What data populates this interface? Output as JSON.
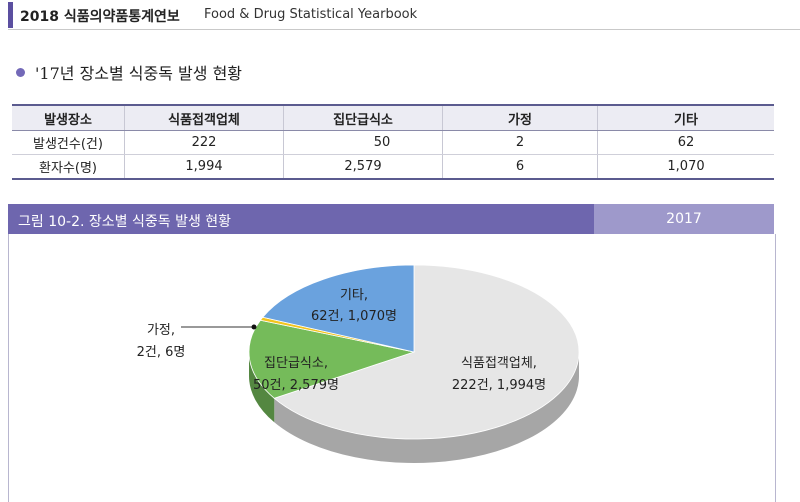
{
  "header": {
    "title_ko": "2018 식품의약품통계연보",
    "title_en": "Food & Drug Statistical Yearbook"
  },
  "section": {
    "subtitle": "'17년 장소별 식중독 발생 현황"
  },
  "table": {
    "headers": [
      "발생장소",
      "식품접객업체",
      "집단급식소",
      "가정",
      "기타"
    ],
    "rows": [
      [
        "발생건수(건)",
        "222",
        "50",
        "2",
        "62"
      ],
      [
        "환자수(명)",
        "1,994",
        "2,579",
        "6",
        "1,070"
      ]
    ]
  },
  "figure": {
    "title": "그림 10-2. 장소별 식중독 발생 현황",
    "year": "2017",
    "labels": {
      "restaurant": [
        "식품접객업체,",
        "222건, 1,994명"
      ],
      "cafeteria": [
        "집단급식소,",
        "50건, 2,579명"
      ],
      "home": [
        "가정,",
        "2건, 6명"
      ],
      "other": [
        "기타,",
        "62건, 1,070명"
      ]
    }
  },
  "chart_data": {
    "type": "pie",
    "title": "그림 10-2. 장소별 식중독 발생 현황",
    "categories": [
      "식품접객업체",
      "집단급식소",
      "가정",
      "기타"
    ],
    "values": [
      222,
      50,
      2,
      62
    ],
    "patients": [
      1994,
      2579,
      6,
      1070
    ],
    "colors": [
      "#e6e6e6",
      "#75bb5a",
      "#f2c41d",
      "#6aa2de"
    ]
  }
}
